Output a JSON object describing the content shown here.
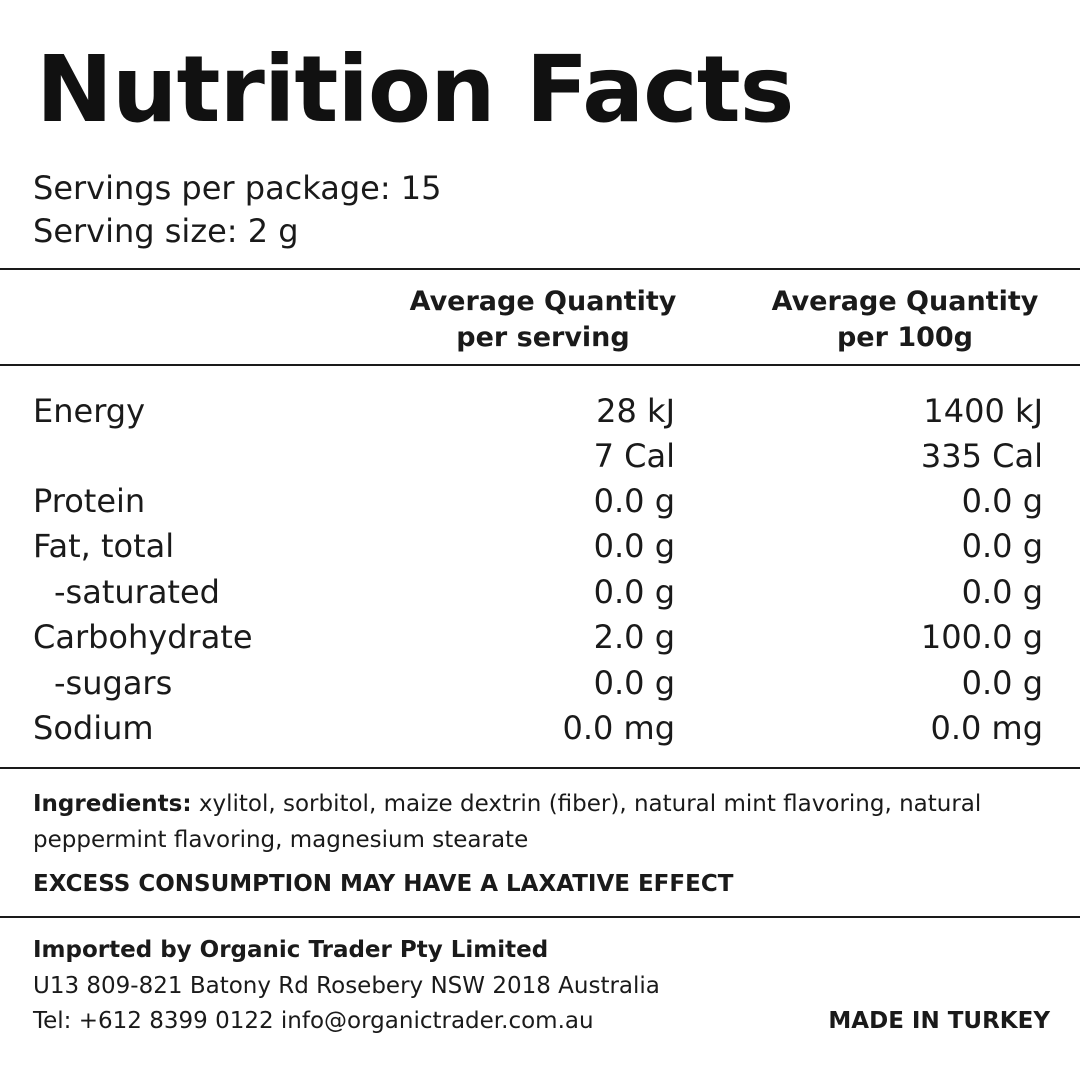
{
  "title": "Nutrition Facts",
  "servings_per_package": "Servings per package: 15",
  "serving_size": "Serving size: 2 g",
  "columns": {
    "per_serving_line1": "Average Quantity",
    "per_serving_line2": "per serving",
    "per_100g_line1": "Average Quantity",
    "per_100g_line2": "per 100g"
  },
  "rows": [
    {
      "label": "Energy",
      "per_serving": "28 kJ",
      "per_100g": "1400 kJ"
    },
    {
      "label": "",
      "per_serving": "7 Cal",
      "per_100g": "335 Cal"
    },
    {
      "label": "Protein",
      "per_serving": "0.0 g",
      "per_100g": "0.0 g"
    },
    {
      "label": "Fat, total",
      "per_serving": "0.0 g",
      "per_100g": "0.0 g"
    },
    {
      "label": "-saturated",
      "per_serving": "0.0 g",
      "per_100g": "0.0 g"
    },
    {
      "label": "Carbohydrate",
      "per_serving": "2.0 g",
      "per_100g": "100.0 g"
    },
    {
      "label": "-sugars",
      "per_serving": "0.0 g",
      "per_100g": "0.0 g"
    },
    {
      "label": "Sodium",
      "per_serving": "0.0 mg",
      "per_100g": "0.0 mg"
    }
  ],
  "ingredients": {
    "label": "Ingredients:",
    "text": " xylitol, sorbitol, maize dextrin (fiber), natural mint flavoring, natural peppermint flavoring, magnesium stearate"
  },
  "warning": "EXCESS CONSUMPTION MAY HAVE A LAXATIVE EFFECT",
  "footer": {
    "importer": "Imported by Organic Trader Pty Limited",
    "address": "U13 809-821 Batony Rd Rosebery NSW 2018 Australia",
    "contact": "Tel: +612 8399 0122 info@organictrader.com.au",
    "origin": "MADE IN TURKEY"
  }
}
